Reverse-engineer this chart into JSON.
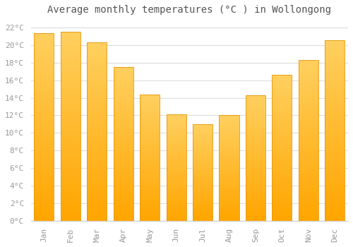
{
  "title": "Average monthly temperatures (°C ) in Wollongong",
  "months": [
    "Jan",
    "Feb",
    "Mar",
    "Apr",
    "May",
    "Jun",
    "Jul",
    "Aug",
    "Sep",
    "Oct",
    "Nov",
    "Dec"
  ],
  "values": [
    21.3,
    21.5,
    20.3,
    17.5,
    14.4,
    12.1,
    11.0,
    12.0,
    14.3,
    16.6,
    18.3,
    20.5
  ],
  "bar_color_bottom": "#FFA500",
  "bar_color_top": "#FFD060",
  "bar_edge_color": "#E8960A",
  "ylim": [
    0,
    23
  ],
  "ytick_step": 2,
  "background_color": "#FFFFFF",
  "grid_color": "#DDDDDD",
  "title_fontsize": 10,
  "tick_fontsize": 8,
  "font_family": "monospace",
  "tick_color": "#999999",
  "title_color": "#555555"
}
